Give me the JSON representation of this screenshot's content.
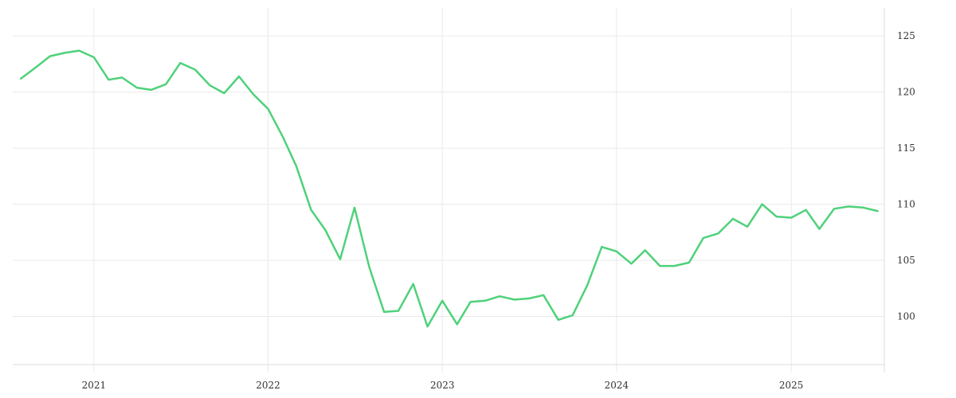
{
  "chart_data": {
    "type": "line",
    "title": "",
    "xlabel": "",
    "ylabel": "",
    "x_ticks": [
      "2021",
      "2022",
      "2023",
      "2024",
      "2025"
    ],
    "y_ticks": [
      100,
      105,
      110,
      115,
      120,
      125
    ],
    "xlim": [
      "2020-07-15",
      "2025-07-15"
    ],
    "ylim": [
      95,
      127.5
    ],
    "y_axis_position": "right",
    "grid": true,
    "legend": "none",
    "series": [
      {
        "color": "#4fd17a",
        "x": [
          "2020-08-01",
          "2020-09-01",
          "2020-10-01",
          "2020-11-01",
          "2020-12-01",
          "2021-01-01",
          "2021-02-01",
          "2021-03-01",
          "2021-04-01",
          "2021-05-01",
          "2021-06-01",
          "2021-07-01",
          "2021-08-01",
          "2021-09-01",
          "2021-10-01",
          "2021-11-01",
          "2021-12-01",
          "2022-01-01",
          "2022-02-01",
          "2022-03-01",
          "2022-04-01",
          "2022-05-01",
          "2022-06-01",
          "2022-07-01",
          "2022-08-01",
          "2022-09-01",
          "2022-10-01",
          "2022-11-01",
          "2022-12-01",
          "2023-01-01",
          "2023-02-01",
          "2023-03-01",
          "2023-04-01",
          "2023-05-01",
          "2023-06-01",
          "2023-07-01",
          "2023-08-01",
          "2023-09-01",
          "2023-10-01",
          "2023-11-01",
          "2023-12-01",
          "2024-01-01",
          "2024-02-01",
          "2024-03-01",
          "2024-04-01",
          "2024-05-01",
          "2024-06-01",
          "2024-07-01",
          "2024-08-01",
          "2024-09-01",
          "2024-10-01",
          "2024-11-01",
          "2024-12-01",
          "2025-01-01",
          "2025-02-01",
          "2025-03-01",
          "2025-04-01",
          "2025-05-01",
          "2025-06-01",
          "2025-07-01"
        ],
        "values": [
          121.2,
          122.2,
          123.2,
          123.5,
          123.7,
          123.1,
          121.1,
          121.3,
          120.4,
          120.2,
          120.7,
          122.6,
          122.0,
          120.6,
          119.9,
          121.4,
          119.8,
          118.5,
          116.0,
          113.4,
          109.5,
          107.7,
          105.1,
          109.7,
          104.4,
          100.4,
          100.5,
          102.9,
          99.1,
          101.4,
          99.3,
          101.3,
          101.4,
          101.8,
          101.5,
          101.6,
          101.9,
          99.7,
          100.1,
          102.8,
          106.2,
          105.8,
          104.7,
          105.9,
          104.5,
          104.5,
          104.8,
          107.0,
          107.4,
          108.7,
          108.0,
          110.0,
          108.9,
          108.8,
          109.5,
          107.8,
          109.6,
          109.8,
          109.7,
          109.4
        ]
      }
    ]
  }
}
